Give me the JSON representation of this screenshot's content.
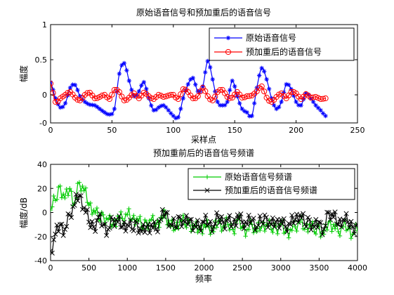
{
  "chart_data": [
    {
      "type": "line",
      "title": "原始语音信号和预加重后的语音信号",
      "xlabel": "采样点",
      "ylabel": "幅度",
      "xlim": [
        0,
        250
      ],
      "ylim": [
        -0.4,
        1
      ],
      "xticks": [
        "0",
        "50",
        "100",
        "150",
        "200",
        "250"
      ],
      "yticks": [
        "-0",
        "0",
        "0.5",
        "1"
      ],
      "ytick_values": [
        -0.4,
        0,
        0.5,
        1
      ],
      "grid": false,
      "legend_position": "top-right",
      "series": [
        {
          "name": "原始语音信号",
          "color": "#0000ff",
          "marker": "asterisk",
          "x": [
            0,
            4,
            8,
            12,
            16,
            20,
            24,
            28,
            32,
            36,
            40,
            44,
            48,
            52,
            56,
            60,
            64,
            68,
            72,
            76,
            80,
            84,
            88,
            92,
            96,
            100,
            104,
            108,
            112,
            116,
            120,
            124,
            128,
            132,
            136,
            140,
            144,
            148,
            152,
            156,
            160,
            164,
            168,
            172,
            176,
            180,
            184,
            188,
            192,
            196,
            200,
            204,
            208,
            212,
            216,
            220,
            224
          ],
          "y": [
            0.18,
            -0.05,
            -0.18,
            -0.12,
            0.1,
            0.14,
            -0.02,
            -0.1,
            -0.14,
            -0.15,
            -0.2,
            -0.25,
            -0.28,
            -0.2,
            0.3,
            0.45,
            0.2,
            -0.02,
            0.05,
            0.18,
            -0.05,
            -0.22,
            -0.18,
            -0.15,
            -0.22,
            -0.3,
            -0.32,
            -0.05,
            0.15,
            0.24,
            0.05,
            0.12,
            0.48,
            0.22,
            -0.1,
            -0.15,
            -0.1,
            0.2,
            -0.02,
            -0.2,
            -0.25,
            -0.3,
            0.1,
            0.38,
            0.22,
            -0.05,
            -0.2,
            -0.1,
            0.15,
            0.08,
            -0.1,
            -0.15,
            0.02,
            -0.05,
            -0.15,
            -0.22,
            -0.3
          ]
        },
        {
          "name": "预加重后的语音信号",
          "color": "#ff0000",
          "marker": "circle",
          "x": [
            0,
            4,
            8,
            12,
            16,
            20,
            24,
            28,
            32,
            36,
            40,
            44,
            48,
            52,
            56,
            60,
            64,
            68,
            72,
            76,
            80,
            84,
            88,
            92,
            96,
            100,
            104,
            108,
            112,
            116,
            120,
            124,
            128,
            132,
            136,
            140,
            144,
            148,
            152,
            156,
            160,
            164,
            168,
            172,
            176,
            180,
            184,
            188,
            192,
            196,
            200,
            204,
            208,
            212,
            216,
            220,
            224
          ],
          "y": [
            0.16,
            -0.1,
            -0.05,
            0.0,
            0.04,
            -0.04,
            -0.08,
            0.0,
            0.03,
            -0.05,
            -0.03,
            0.0,
            -0.06,
            0.07,
            0.04,
            -0.08,
            -0.04,
            0.02,
            -0.05,
            0.03,
            -0.02,
            -0.06,
            0.0,
            -0.03,
            -0.01,
            0.0,
            -0.06,
            0.08,
            0.04,
            -0.05,
            -0.02,
            0.1,
            -0.02,
            -0.08,
            0.04,
            0.07,
            -0.03,
            -0.04,
            0.04,
            -0.04,
            -0.02,
            -0.01,
            0.05,
            0.12,
            -0.04,
            -0.1,
            -0.03,
            0.02,
            -0.05,
            0.04,
            0.02,
            -0.06,
            0.01,
            -0.04,
            -0.03,
            -0.06,
            -0.05
          ]
        }
      ]
    },
    {
      "type": "line",
      "title": "预加重前后的语音信号频谱",
      "xlabel": "频率",
      "ylabel": "幅度/dB",
      "xlim": [
        0,
        4000
      ],
      "ylim": [
        -40,
        40
      ],
      "xticks": [
        "0",
        "500",
        "1000",
        "1500",
        "2000",
        "2500",
        "3000",
        "3500",
        "4000"
      ],
      "yticks": [
        "-40",
        "-20",
        "0",
        "20",
        "40"
      ],
      "grid": false,
      "legend_position": "top-right",
      "series": [
        {
          "name": "原始语音信号频谱",
          "color": "#00cc00",
          "marker": "plus",
          "x": [
            0,
            62,
            125,
            187,
            250,
            312,
            375,
            437,
            500,
            562,
            625,
            687,
            750,
            812,
            875,
            937,
            1000,
            1062,
            1125,
            1187,
            1250,
            1312,
            1375,
            1437,
            1500,
            1562,
            1625,
            1687,
            1750,
            1812,
            1875,
            1937,
            2000,
            2062,
            2125,
            2187,
            2250,
            2312,
            2375,
            2437,
            2500,
            2562,
            2625,
            2687,
            2750,
            2812,
            2875,
            2937,
            3000,
            3062,
            3125,
            3187,
            3250,
            3312,
            3375,
            3437,
            3500,
            3562,
            3625,
            3687,
            3750,
            3812,
            3875,
            3937,
            4000
          ],
          "y": [
            2,
            10,
            22,
            12,
            20,
            8,
            25,
            18,
            6,
            2,
            -5,
            -2,
            -6,
            -10,
            -3,
            -5,
            -2,
            -6,
            -5,
            -12,
            -8,
            -6,
            -10,
            -4,
            -2,
            -12,
            -14,
            -6,
            -10,
            -8,
            -12,
            -14,
            -10,
            -12,
            -16,
            -8,
            -12,
            -10,
            -14,
            -6,
            -12,
            -14,
            -10,
            -16,
            -12,
            -10,
            -14,
            -12,
            -10,
            -16,
            -14,
            -12,
            -8,
            -14,
            -10,
            -16,
            -12,
            -18,
            -8,
            -10,
            -16,
            -12,
            -14,
            -18,
            -15
          ],
          "dense": true
        },
        {
          "name": "预加重后的语音信号频谱",
          "color": "#000000",
          "marker": "x",
          "x": [
            0,
            62,
            125,
            187,
            250,
            312,
            375,
            437,
            500,
            562,
            625,
            687,
            750,
            812,
            875,
            937,
            1000,
            1062,
            1125,
            1187,
            1250,
            1312,
            1375,
            1437,
            1500,
            1562,
            1625,
            1687,
            1750,
            1812,
            1875,
            1937,
            2000,
            2062,
            2125,
            2187,
            2250,
            2312,
            2375,
            2437,
            2500,
            2562,
            2625,
            2687,
            2750,
            2812,
            2875,
            2937,
            3000,
            3062,
            3125,
            3187,
            3250,
            3312,
            3375,
            3437,
            3500,
            3562,
            3625,
            3687,
            3750,
            3812,
            3875,
            3937,
            4000
          ],
          "y": [
            -32,
            -18,
            -10,
            -14,
            -2,
            6,
            14,
            4,
            -8,
            -12,
            -4,
            -10,
            -14,
            -6,
            -8,
            -12,
            -10,
            -14,
            -8,
            -16,
            -12,
            -10,
            -14,
            -6,
            0,
            -10,
            -12,
            -4,
            -8,
            -6,
            -10,
            -12,
            -8,
            -10,
            -12,
            -4,
            -8,
            -6,
            -10,
            -2,
            -8,
            -10,
            -6,
            -12,
            -8,
            -4,
            -10,
            -8,
            -6,
            -12,
            -10,
            -6,
            -2,
            -10,
            -6,
            -12,
            -8,
            -14,
            0,
            -4,
            -10,
            -6,
            -8,
            -12,
            -10
          ],
          "dense": true
        }
      ]
    }
  ]
}
